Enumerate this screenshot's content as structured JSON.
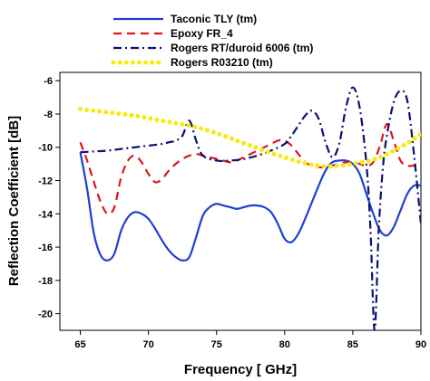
{
  "chart_data": {
    "type": "line",
    "title": "",
    "xlabel": "Frequency [ GHz]",
    "ylabel": "Reflection Coefficient [dB]",
    "xlim": [
      63.5,
      90
    ],
    "ylim": [
      -21,
      -5.5
    ],
    "xticks": [
      65,
      70,
      75,
      80,
      85,
      90
    ],
    "yticks": [
      -6,
      -8,
      -10,
      -12,
      -14,
      -16,
      -18,
      -20
    ],
    "grid": false,
    "legend_position": "top",
    "series": [
      {
        "name": "Taconic TLY (tm)",
        "color": "#1f3fd6",
        "style": "solid",
        "x": [
          65,
          65.5,
          66,
          66.5,
          67,
          67.5,
          68,
          68.5,
          69,
          69.5,
          70,
          70.5,
          71,
          71.5,
          72,
          72.5,
          73,
          73.5,
          74,
          74.5,
          75,
          75.5,
          76,
          76.5,
          77,
          77.5,
          78,
          78.5,
          79,
          79.5,
          80,
          80.5,
          81,
          81.5,
          82,
          82.5,
          83,
          83.5,
          84,
          84.5,
          85,
          85.5,
          86,
          86.5,
          87,
          87.5,
          88,
          88.5,
          89,
          89.5,
          90
        ],
        "y": [
          -10.3,
          -12.5,
          -15.2,
          -16.5,
          -16.8,
          -16.4,
          -15.0,
          -14.2,
          -13.9,
          -14.0,
          -14.3,
          -14.9,
          -15.6,
          -16.2,
          -16.6,
          -16.8,
          -16.6,
          -15.4,
          -14.1,
          -13.6,
          -13.4,
          -13.5,
          -13.6,
          -13.7,
          -13.6,
          -13.5,
          -13.5,
          -13.6,
          -13.9,
          -14.6,
          -15.5,
          -15.7,
          -15.2,
          -14.3,
          -13.3,
          -12.3,
          -11.4,
          -10.9,
          -10.8,
          -10.8,
          -11.0,
          -11.6,
          -12.8,
          -14.0,
          -15.0,
          -15.3,
          -14.8,
          -13.8,
          -12.8,
          -12.3,
          -12.3
        ]
      },
      {
        "name": "Epoxy FR_4",
        "color": "#e0141e",
        "style": "dashed",
        "x": [
          65,
          65.5,
          66,
          66.5,
          67,
          67.5,
          68,
          68.5,
          69,
          69.5,
          70,
          70.5,
          71,
          71.5,
          72,
          72.5,
          73,
          73.5,
          74,
          74.5,
          75,
          75.5,
          76,
          76.5,
          77,
          77.5,
          78,
          78.5,
          79,
          79.5,
          80,
          80.5,
          81,
          81.5,
          82,
          82.5,
          83,
          83.5,
          84,
          84.5,
          85,
          85.5,
          86,
          86.5,
          87,
          87.5,
          88,
          88.5,
          89,
          89.5,
          90
        ],
        "y": [
          -9.7,
          -10.8,
          -12.1,
          -13.3,
          -14.0,
          -13.6,
          -11.8,
          -10.8,
          -10.5,
          -10.9,
          -11.6,
          -12.1,
          -11.9,
          -11.4,
          -11.0,
          -10.7,
          -10.5,
          -10.4,
          -10.5,
          -10.6,
          -10.7,
          -10.8,
          -10.9,
          -10.8,
          -10.6,
          -10.4,
          -10.2,
          -10.0,
          -9.8,
          -9.6,
          -9.6,
          -9.9,
          -10.4,
          -10.9,
          -11.1,
          -11.2,
          -11.2,
          -11.1,
          -11.0,
          -10.9,
          -10.9,
          -11.0,
          -11.1,
          -10.9,
          -9.9,
          -8.6,
          -9.6,
          -10.8,
          -11.1,
          -11.1,
          -11.1
        ]
      },
      {
        "name": "Rogers RT/duroid 6006 (tm)",
        "color": "#0a1075",
        "style": "dashdot",
        "x": [
          65,
          66,
          67,
          68,
          69,
          70,
          71,
          71.5,
          72,
          72.5,
          73,
          73.5,
          74,
          75,
          76,
          77,
          78,
          79,
          80,
          80.5,
          81,
          81.5,
          82,
          82.5,
          83,
          83.5,
          84,
          84.5,
          85,
          85.5,
          86,
          86.3,
          86.6,
          86.9,
          87.2,
          87.5,
          88,
          88.5,
          89,
          89.5,
          90
        ],
        "y": [
          -10.3,
          -10.25,
          -10.2,
          -10.1,
          -10.0,
          -9.9,
          -9.8,
          -9.7,
          -9.6,
          -9.3,
          -8.4,
          -9.6,
          -10.5,
          -10.8,
          -10.8,
          -10.7,
          -10.5,
          -10.2,
          -9.8,
          -9.3,
          -8.7,
          -8.1,
          -7.8,
          -8.3,
          -9.7,
          -10.6,
          -9.8,
          -7.6,
          -6.4,
          -7.6,
          -11.0,
          -15.0,
          -21.0,
          -15.0,
          -11.3,
          -9.3,
          -7.3,
          -6.6,
          -7.2,
          -10.5,
          -14.6
        ]
      },
      {
        "name": "Rogers R03210 (tm)",
        "color": "#f5eb12",
        "style": "dotted",
        "x": [
          65,
          66,
          67,
          68,
          69,
          70,
          71,
          72,
          73,
          74,
          75,
          76,
          77,
          78,
          79,
          80,
          81,
          82,
          83,
          84,
          85,
          86,
          87,
          88,
          89,
          90
        ],
        "y": [
          -7.7,
          -7.8,
          -7.9,
          -8.0,
          -8.1,
          -8.25,
          -8.4,
          -8.55,
          -8.7,
          -8.9,
          -9.15,
          -9.45,
          -9.75,
          -10.05,
          -10.35,
          -10.6,
          -10.85,
          -11.05,
          -11.15,
          -11.1,
          -11.0,
          -10.85,
          -10.6,
          -10.2,
          -9.75,
          -9.2
        ]
      }
    ]
  }
}
